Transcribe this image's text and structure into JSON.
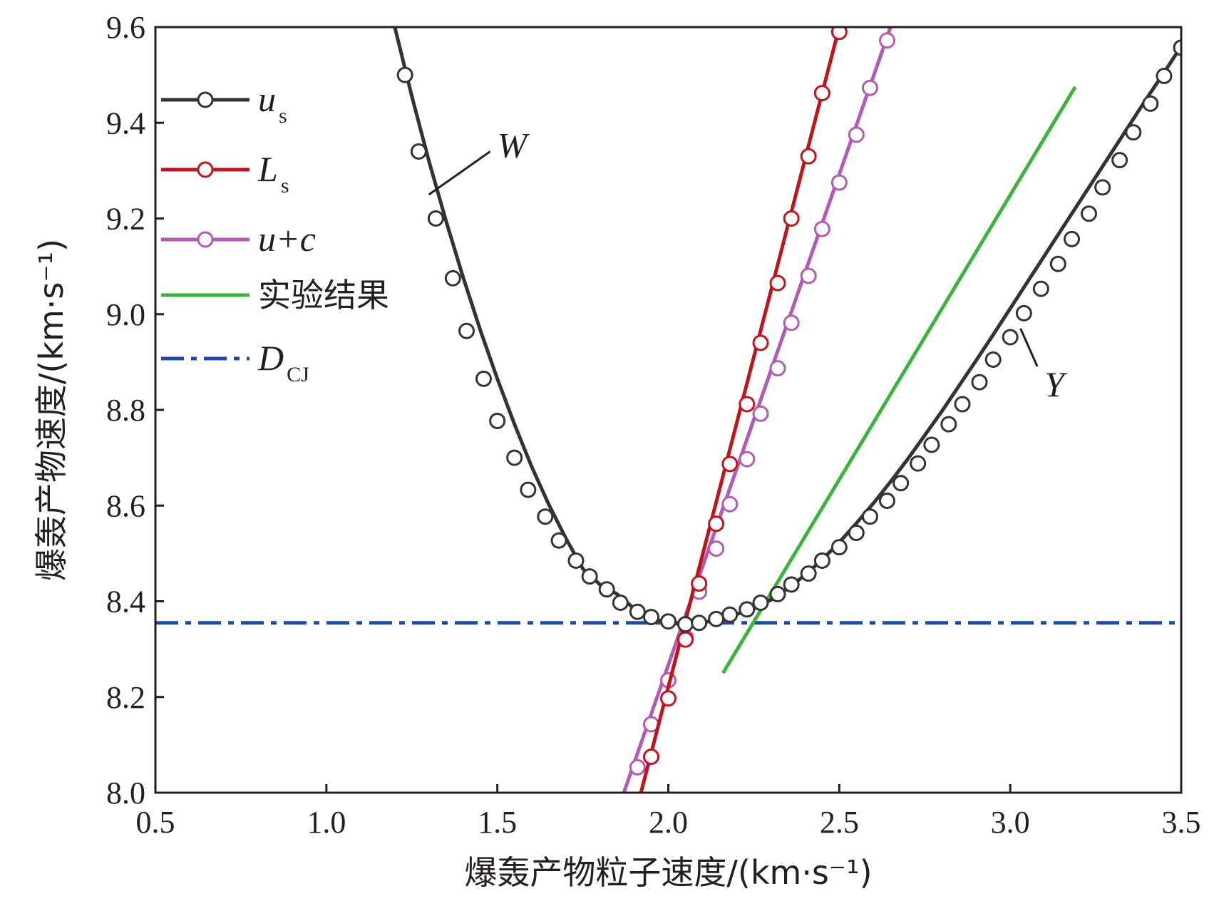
{
  "chart_data": {
    "type": "line",
    "title": "",
    "xlabel": "爆轰产物粒子速度/(km·s⁻¹)",
    "ylabel": "爆轰产物速度/(km·s⁻¹)",
    "xlim": [
      0.5,
      3.5
    ],
    "ylim": [
      8.0,
      9.6
    ],
    "xticks": [
      "0.5",
      "1.0",
      "1.5",
      "2.0",
      "2.5",
      "3.0",
      "3.5"
    ],
    "yticks": [
      "8.0",
      "8.2",
      "8.4",
      "8.6",
      "8.8",
      "9.0",
      "9.2",
      "9.4",
      "9.6"
    ],
    "grid": false,
    "legend_position": "top-left",
    "colors": {
      "us": "#333333",
      "Ls": "#c0141c",
      "uc": "#b25ab4",
      "exp": "#3cb43c",
      "dcj": "#1f4aa0"
    },
    "series": [
      {
        "key": "us",
        "name": "u_s",
        "legend_main": "u",
        "legend_sub": "s",
        "marker": "circle",
        "x": [
          1.2,
          1.25,
          1.3,
          1.35,
          1.4,
          1.45,
          1.5,
          1.55,
          1.6,
          1.65,
          1.7,
          1.75,
          1.8,
          1.85,
          1.9,
          1.95,
          2.0,
          2.05,
          2.1,
          2.15,
          2.2,
          2.25,
          2.3,
          2.35,
          2.4,
          2.45,
          2.5,
          2.55,
          2.6,
          2.65,
          2.7,
          2.75,
          2.8,
          2.85,
          2.9,
          2.95,
          3.0,
          3.05,
          3.1,
          3.15,
          3.2,
          3.25,
          3.3,
          3.35,
          3.4,
          3.45,
          3.5
        ],
        "y": [
          9.6,
          9.455,
          9.32,
          9.195,
          9.077,
          8.967,
          8.865,
          8.77,
          8.682,
          8.603,
          8.532,
          8.468,
          8.435,
          8.415,
          8.385,
          8.365,
          8.355,
          8.352,
          8.355,
          8.363,
          8.373,
          8.385,
          8.403,
          8.427,
          8.455,
          8.487,
          8.523,
          8.563,
          8.605,
          8.65,
          8.697,
          8.747,
          8.797,
          8.85,
          8.903,
          8.957,
          9.012,
          9.067,
          9.122,
          9.177,
          9.232,
          9.287,
          9.342,
          9.397,
          9.452,
          9.505,
          9.56
        ],
        "marker_x": [
          1.23,
          1.27,
          1.32,
          1.37,
          1.41,
          1.46,
          1.5,
          1.55,
          1.59,
          1.64,
          1.68,
          1.73,
          1.77,
          1.82,
          1.86,
          1.91,
          1.95,
          2.0,
          2.05,
          2.09,
          2.14,
          2.18,
          2.23,
          2.27,
          2.32,
          2.36,
          2.41,
          2.45,
          2.5,
          2.55,
          2.59,
          2.64,
          2.68,
          2.73,
          2.77,
          2.82,
          2.86,
          2.91,
          2.95,
          3.0,
          3.04,
          3.09,
          3.14,
          3.18,
          3.23,
          3.27,
          3.32,
          3.36,
          3.41,
          3.45,
          3.5
        ],
        "marker_y": [
          9.5,
          9.34,
          9.2,
          9.075,
          8.965,
          8.865,
          8.777,
          8.7,
          8.633,
          8.577,
          8.527,
          8.485,
          8.452,
          8.425,
          8.397,
          8.378,
          8.367,
          8.358,
          8.352,
          8.355,
          8.363,
          8.372,
          8.383,
          8.397,
          8.415,
          8.435,
          8.458,
          8.485,
          8.513,
          8.543,
          8.577,
          8.61,
          8.647,
          8.688,
          8.727,
          8.77,
          8.812,
          8.858,
          8.905,
          8.952,
          9.002,
          9.053,
          9.105,
          9.157,
          9.21,
          9.265,
          9.322,
          9.38,
          9.44,
          9.498,
          9.557
        ]
      },
      {
        "key": "Ls",
        "name": "L_s",
        "legend_main": "L",
        "legend_sub": "s",
        "marker": "circle",
        "x": [
          1.92,
          2.5
        ],
        "y": [
          8.0,
          9.6
        ],
        "marker_x": [
          1.95,
          2.0,
          2.05,
          2.09,
          2.14,
          2.18,
          2.23,
          2.27,
          2.32,
          2.36,
          2.41,
          2.45,
          2.5
        ],
        "marker_y": [
          8.075,
          8.197,
          8.32,
          8.437,
          8.562,
          8.687,
          8.812,
          8.94,
          9.065,
          9.2,
          9.33,
          9.462,
          9.59
        ]
      },
      {
        "key": "uc",
        "name": "u+c",
        "legend_main": "u+c",
        "legend_sub": "",
        "marker": "circle",
        "x": [
          1.87,
          2.65
        ],
        "y": [
          8.0,
          9.6
        ],
        "marker_x": [
          1.91,
          1.95,
          2.0,
          2.05,
          2.09,
          2.14,
          2.18,
          2.23,
          2.27,
          2.32,
          2.36,
          2.41,
          2.45,
          2.5,
          2.55,
          2.59,
          2.64
        ],
        "marker_y": [
          8.053,
          8.143,
          8.235,
          8.325,
          8.42,
          8.51,
          8.603,
          8.697,
          8.792,
          8.887,
          8.982,
          9.08,
          9.178,
          9.275,
          9.375,
          9.473,
          9.572
        ]
      },
      {
        "key": "exp",
        "name": "实验结果",
        "legend_main": "实验结果",
        "legend_sub": "",
        "marker": "none",
        "x": [
          2.16,
          3.19
        ],
        "y": [
          8.25,
          9.475
        ]
      },
      {
        "key": "dcj",
        "name": "D_CJ",
        "legend_main": "D",
        "legend_sub": "CJ",
        "marker": "none",
        "dash": "dashdot",
        "x": [
          0.5,
          3.5
        ],
        "y": [
          8.355,
          8.355
        ]
      }
    ],
    "annotations": [
      {
        "text": "W",
        "point": [
          1.3,
          9.25
        ],
        "label_pos": [
          1.5,
          9.355
        ]
      },
      {
        "text": "Y",
        "point": [
          3.03,
          8.97
        ],
        "label_pos": [
          3.1,
          8.855
        ]
      }
    ]
  }
}
